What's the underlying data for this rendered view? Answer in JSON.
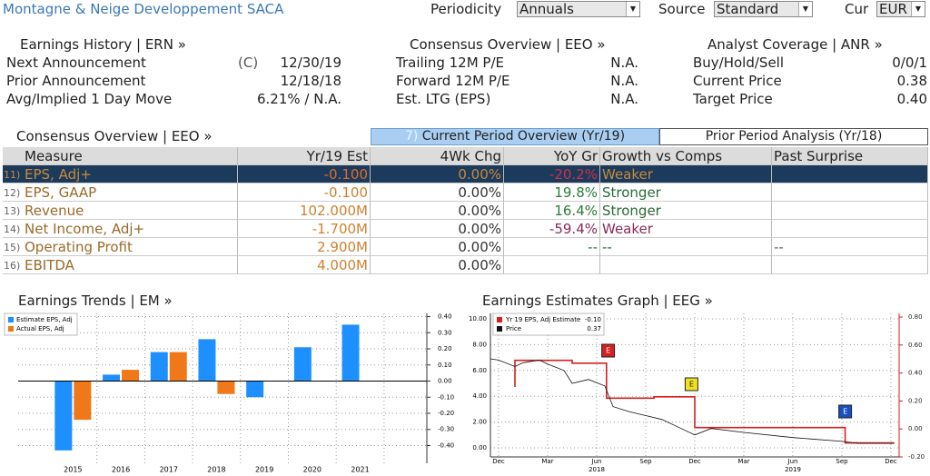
{
  "header": {
    "title": "Montagne & Neige Developpement SACA",
    "periodicity_label": "Periodicity",
    "periodicity": "Annuals",
    "source_label": "Source",
    "source": "Standard",
    "cur_label": "Cur",
    "cur": "EUR"
  },
  "earnings_history": {
    "title": "Earnings History | ERN »",
    "rows": [
      {
        "label": "Next Announcement",
        "flag": "(C)",
        "value": "12/30/19"
      },
      {
        "label": "Prior Announcement",
        "value": "12/18/18"
      },
      {
        "label": "Avg/Implied 1 Day Move",
        "value": "6.21% / N.A."
      }
    ]
  },
  "consensus_summary": {
    "title": "Consensus Overview | EEO »",
    "rows": [
      {
        "label": "Trailing 12M P/E",
        "value": "N.A."
      },
      {
        "label": "Forward 12M P/E",
        "value": "N.A."
      },
      {
        "label": "Est. LTG (EPS)",
        "value": "N.A."
      }
    ]
  },
  "analyst_coverage": {
    "title": "Analyst Coverage | ANR »",
    "rows": [
      {
        "label": "Buy/Hold/Sell",
        "value": "0/0/1"
      },
      {
        "label": "Current Price",
        "value": "0.38"
      },
      {
        "label": "Target Price",
        "value": "0.40"
      }
    ]
  },
  "consensus_table": {
    "title": "Consensus Overview | EEO »",
    "tabs": [
      {
        "number": "7)",
        "label": "Current Period Overview (Yr/19)"
      },
      {
        "label": "Prior Period Analysis (Yr/18)"
      }
    ],
    "columns": [
      "Measure",
      "Yr/19 Est",
      "4Wk Chg",
      "YoY Gr",
      "Growth vs Comps",
      "Past Surprise"
    ],
    "selected_row": 0,
    "rows": [
      {
        "number": "11)",
        "measure": "EPS, Adj+",
        "est": "-0.100",
        "chg": "0.00%",
        "yoy": "-20.2%",
        "comps": "Weaker"
      },
      {
        "number": "12)",
        "measure": "EPS, GAAP",
        "est": "-0.100",
        "chg": "0.00%",
        "yoy": "19.8%",
        "comps": "Stronger"
      },
      {
        "number": "13)",
        "measure": "Revenue",
        "est": "102.000M",
        "chg": "0.00%",
        "yoy": "16.4%",
        "comps": "Stronger"
      },
      {
        "number": "14)",
        "measure": "Net Income, Adj+",
        "est": "-1.700M",
        "chg": "0.00%",
        "yoy": "-59.4%",
        "comps": "Weaker"
      },
      {
        "number": "15)",
        "measure": "Operating Profit",
        "est": "2.900M",
        "chg": "0.00%",
        "yoy": "--",
        "comps": "--",
        "surprise": "--"
      },
      {
        "number": "16)",
        "measure": "EBITDA",
        "est": "4.000M",
        "chg": "0.00%"
      }
    ]
  },
  "earnings_trends": {
    "type": "bar",
    "title": "Earnings Trends | EM »",
    "categories": [
      "2015",
      "2016",
      "2017",
      "2018",
      "2019",
      "2020",
      "2021"
    ],
    "series": [
      {
        "name": "Estimate EPS, Adj",
        "color": "#1e8fff",
        "values": [
          -0.43,
          0.04,
          0.18,
          0.26,
          -0.1,
          0.21,
          0.35
        ]
      },
      {
        "name": "Actual EPS, Adj",
        "color": "#f07818",
        "values": [
          -0.24,
          0.07,
          0.18,
          -0.08,
          null,
          null,
          null
        ]
      }
    ],
    "ylim": [
      -0.51,
      0.42
    ],
    "yticks": [
      {
        "value": 0.4,
        "label": "0.40"
      },
      {
        "value": 0.3,
        "label": "0.30"
      },
      {
        "value": 0.2,
        "label": "0.20"
      },
      {
        "value": 0.1,
        "label": "0.10"
      },
      {
        "value": 0,
        "label": "0.00"
      },
      {
        "value": -0.1,
        "label": "-0.10"
      },
      {
        "value": -0.2,
        "label": "-0.20"
      },
      {
        "value": -0.3,
        "label": "-0.30"
      },
      {
        "value": -0.4,
        "label": "-0.40"
      }
    ],
    "grid": true
  },
  "estimates_graph": {
    "type": "line",
    "title": "Earnings Estimates Graph | EEG »",
    "xlim": [
      -0.5,
      24.5
    ],
    "xticks": [
      {
        "value": 0,
        "label": "Dec"
      },
      {
        "value": 3,
        "label": "Mar"
      },
      {
        "value": 6,
        "label": "Jun"
      },
      {
        "value": 9,
        "label": "Sep"
      },
      {
        "value": 12,
        "label": "Dec"
      },
      {
        "value": 15,
        "label": "Mar"
      },
      {
        "value": 18,
        "label": "Jun"
      },
      {
        "value": 21,
        "label": "Sep"
      },
      {
        "value": 24,
        "label": "Dec"
      }
    ],
    "year_ticks": [
      {
        "value": 6,
        "label": "2018"
      },
      {
        "value": 18,
        "label": "2019"
      }
    ],
    "ylim": [
      -0.7,
      10.42
    ],
    "yticks": [
      {
        "value": 10,
        "label": "10.00"
      },
      {
        "value": 8,
        "label": "8.00"
      },
      {
        "value": 6,
        "label": "6.00"
      },
      {
        "value": 4,
        "label": "4.00"
      },
      {
        "value": 2,
        "label": "2.00"
      },
      {
        "value": 0,
        "label": "0.00"
      }
    ],
    "y2lim": [
      -0.2,
      0.826
    ],
    "y2ticks": [
      {
        "value": 0.8,
        "label": "0.80"
      },
      {
        "value": 0.6,
        "label": "0.60"
      },
      {
        "value": 0.4,
        "label": "0.40"
      },
      {
        "value": 0.2,
        "label": "0.20"
      },
      {
        "value": 0,
        "label": "0.00"
      },
      {
        "value": -0.2,
        "label": "-0.20"
      }
    ],
    "grid": true,
    "series": [
      {
        "name": "Yr 19 EPS, Adj Estimate",
        "value_label": "-0.10",
        "color": "#d42020",
        "axis": "y2",
        "x": [
          1,
          1,
          4.5,
          4.5,
          6.6,
          6.6,
          9.5,
          9.5,
          12,
          12,
          21.2,
          21.2,
          24.2
        ],
        "values": [
          0.3,
          0.49,
          0.49,
          0.47,
          0.47,
          0.22,
          0.22,
          0.23,
          0.23,
          0.01,
          0.01,
          -0.1,
          -0.1
        ]
      },
      {
        "name": "Price",
        "value_label": "0.37",
        "color": "#111111",
        "x": [
          -0.5,
          0,
          1,
          1.5,
          2.5,
          3,
          4,
          4.5,
          5.5,
          6.5,
          7,
          8,
          9,
          10,
          11,
          12,
          13,
          15,
          18,
          21,
          22,
          24.2
        ],
        "values": [
          6.9,
          6.8,
          6.3,
          6.6,
          6.8,
          6.5,
          6.0,
          5.0,
          5.3,
          4.8,
          3.2,
          2.8,
          2.5,
          2.2,
          1.6,
          1.0,
          1.5,
          1.2,
          0.8,
          0.5,
          0.35,
          0.35
        ]
      }
    ],
    "events": [
      {
        "x": 6.7,
        "label": "E",
        "color": "#d42020"
      },
      {
        "x": 11.8,
        "label": "E",
        "color": "#f0e020"
      },
      {
        "x": 21.2,
        "label": "E",
        "color": "#1a4fc0"
      }
    ]
  }
}
